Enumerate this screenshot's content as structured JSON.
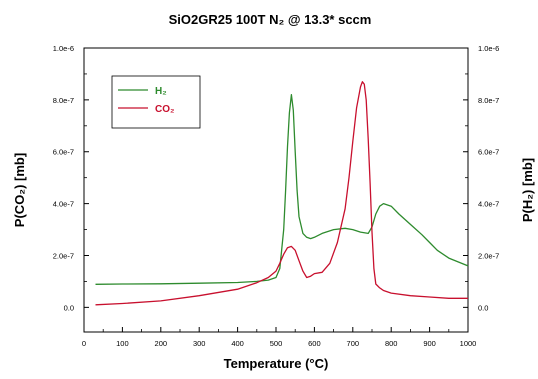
{
  "chart_data": {
    "type": "line",
    "title": "SiO2GR25 100T N₂ @ 13.3* sccm",
    "xlabel": "Temperature (°C)",
    "ylabel_left": "P(CO₂) [mb]",
    "ylabel_right": "P(H₂) [mb]",
    "xlim": [
      0,
      1000
    ],
    "ylim_left": [
      -9.5e-08,
      1e-06
    ],
    "ylim_right": [
      -9.5e-08,
      1e-06
    ],
    "x_ticks": [
      "0",
      "100",
      "200",
      "300",
      "400",
      "500",
      "600",
      "700",
      "800",
      "900",
      "1000"
    ],
    "y_ticks_left": [
      "0.0",
      "2.0e-7",
      "4.0e-7",
      "6.0e-7",
      "8.0e-7",
      "1.0e-6"
    ],
    "y_ticks_right": [
      "0.0",
      "2.0e-7",
      "4.0e-7",
      "6.0e-7",
      "8.0e-7",
      "1.0e-6"
    ],
    "grid": false,
    "legend_position": "top-left",
    "series": [
      {
        "name": "H₂",
        "color": "#2e8b2e",
        "axis": "right",
        "x": [
          30,
          100,
          200,
          300,
          400,
          450,
          480,
          500,
          510,
          520,
          525,
          530,
          535,
          540,
          545,
          550,
          555,
          560,
          570,
          580,
          590,
          600,
          620,
          650,
          680,
          700,
          720,
          740,
          750,
          760,
          770,
          780,
          800,
          820,
          850,
          880,
          900,
          920,
          950,
          1000
        ],
        "y": [
          8.9e-08,
          9e-08,
          9.1e-08,
          9.3e-08,
          9.6e-08,
          1e-07,
          1.05e-07,
          1.15e-07,
          1.5e-07,
          3e-07,
          4.5e-07,
          6.2e-07,
          7.5e-07,
          8.2e-07,
          7.6e-07,
          6e-07,
          4.5e-07,
          3.5e-07,
          2.85e-07,
          2.7e-07,
          2.65e-07,
          2.7e-07,
          2.85e-07,
          3e-07,
          3.05e-07,
          3e-07,
          2.9e-07,
          2.85e-07,
          3.1e-07,
          3.6e-07,
          3.9e-07,
          4e-07,
          3.9e-07,
          3.6e-07,
          3.2e-07,
          2.8e-07,
          2.5e-07,
          2.2e-07,
          1.9e-07,
          1.6e-07
        ]
      },
      {
        "name": "CO₂",
        "color": "#c8102e",
        "axis": "left",
        "x": [
          30,
          100,
          200,
          300,
          400,
          450,
          480,
          500,
          510,
          520,
          530,
          540,
          550,
          560,
          570,
          580,
          590,
          600,
          620,
          640,
          660,
          680,
          690,
          700,
          710,
          720,
          725,
          730,
          735,
          740,
          745,
          750,
          755,
          760,
          770,
          780,
          800,
          850,
          900,
          950,
          1000
        ],
        "y": [
          1e-08,
          1.5e-08,
          2.5e-08,
          4.5e-08,
          7e-08,
          9.5e-08,
          1.15e-07,
          1.4e-07,
          1.7e-07,
          2.05e-07,
          2.3e-07,
          2.35e-07,
          2.2e-07,
          1.8e-07,
          1.4e-07,
          1.15e-07,
          1.2e-07,
          1.3e-07,
          1.35e-07,
          1.7e-07,
          2.5e-07,
          3.8e-07,
          5e-07,
          6.4e-07,
          7.7e-07,
          8.5e-07,
          8.7e-07,
          8.6e-07,
          8e-07,
          6.5e-07,
          4.8e-07,
          2.9e-07,
          1.5e-07,
          9e-08,
          7.5e-08,
          6.5e-08,
          5.5e-08,
          4.5e-08,
          4e-08,
          3.5e-08,
          3.5e-08
        ]
      }
    ]
  }
}
